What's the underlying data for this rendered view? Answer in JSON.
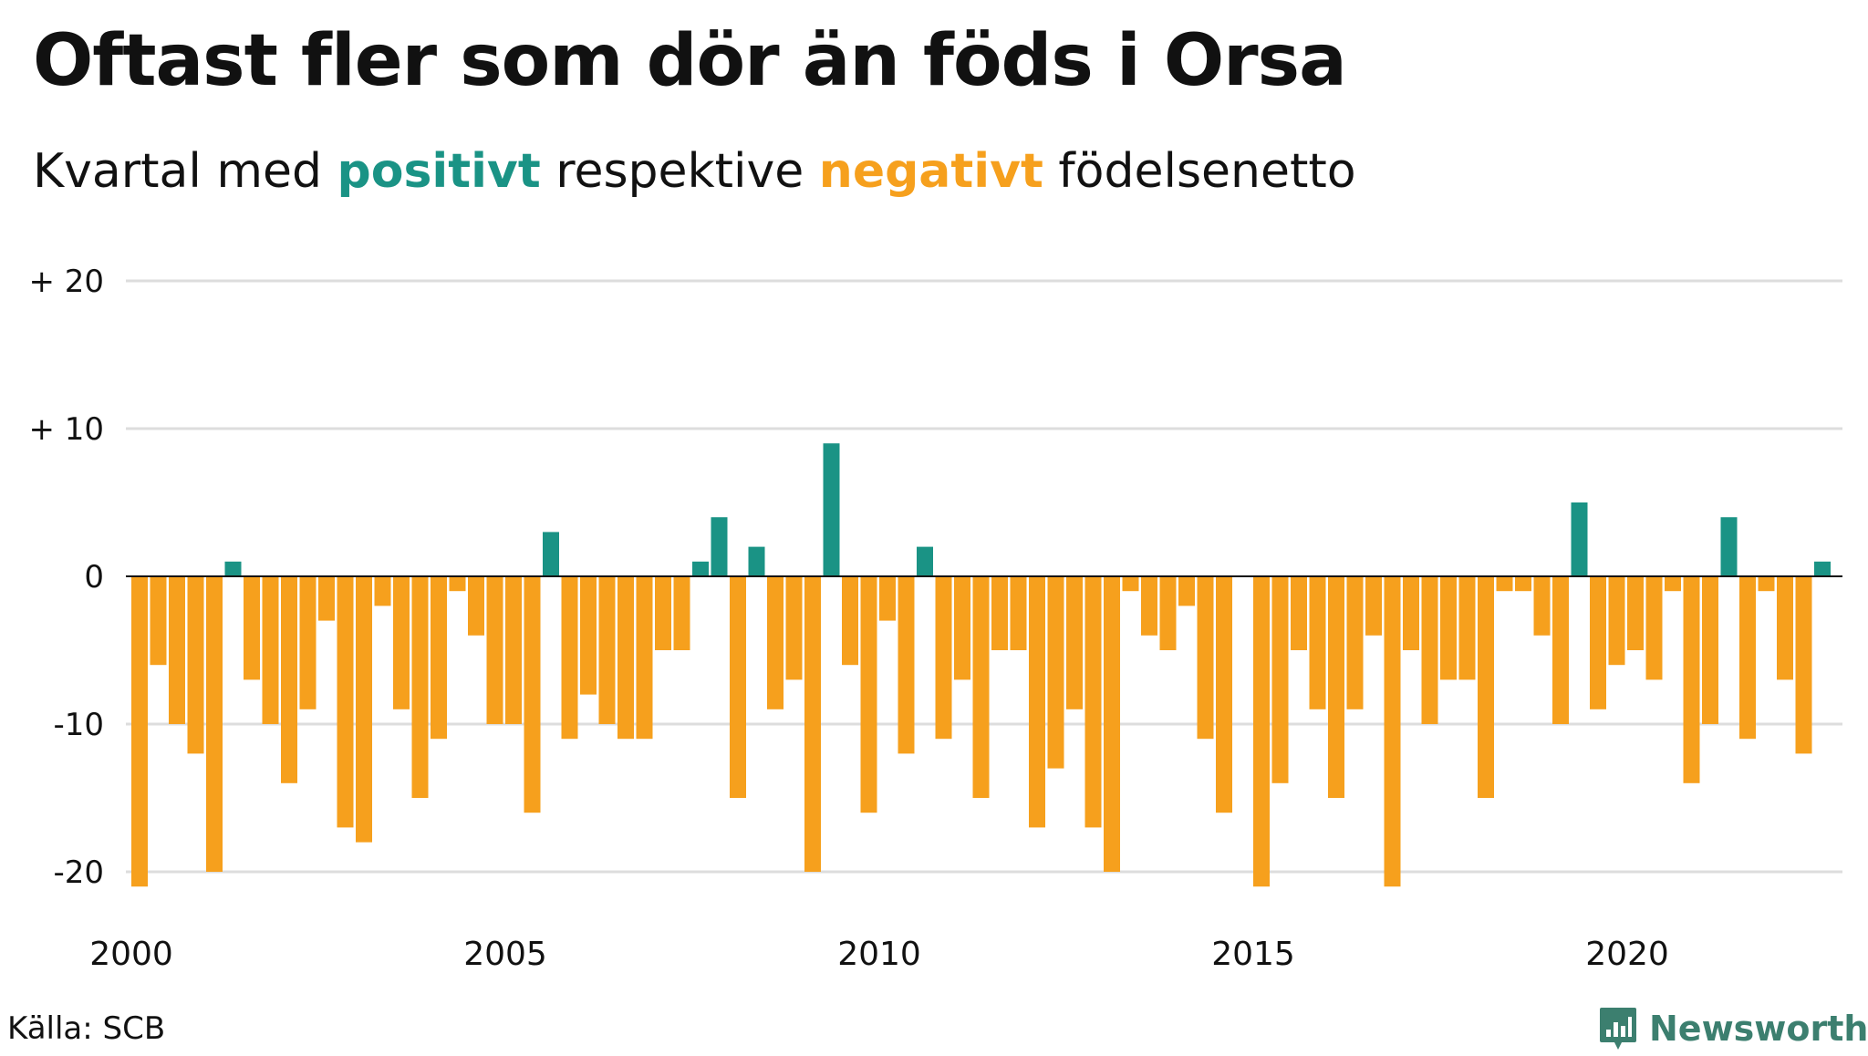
{
  "header": {
    "title": "Oftast fler som dör än föds i Orsa",
    "subtitle_prefix": "Kvartal med ",
    "subtitle_positive": "positivt",
    "subtitle_middle": " respektive ",
    "subtitle_negative": "negativt",
    "subtitle_suffix": " födelsenetto"
  },
  "footer": {
    "source": "Källa: SCB",
    "brand": "Newsworthy",
    "brand_icon": "bar-chart-chat-icon"
  },
  "colors": {
    "positive": "#1a9385",
    "negative": "#f6a01d",
    "grid": "#dddddd",
    "zero_line": "#111111",
    "brand": "#3c7f6f"
  },
  "chart_data": {
    "type": "bar",
    "x_start_year": 2000,
    "periods_per_year": 4,
    "values": [
      -21,
      -6,
      -10,
      -12,
      -20,
      1,
      -7,
      -10,
      -14,
      -9,
      -3,
      -17,
      -18,
      -2,
      -9,
      -15,
      -11,
      -1,
      -4,
      -10,
      -10,
      -16,
      3,
      -11,
      -8,
      -10,
      -11,
      -11,
      -5,
      -5,
      1,
      4,
      -15,
      2,
      -9,
      -7,
      -20,
      9,
      -6,
      -16,
      -3,
      -12,
      2,
      -11,
      -7,
      -15,
      -5,
      -5,
      -17,
      -13,
      -9,
      -17,
      -20,
      -1,
      -4,
      -5,
      -2,
      -11,
      -16,
      0,
      -21,
      -14,
      -5,
      -9,
      -15,
      -9,
      -4,
      -21,
      -5,
      -10,
      -7,
      -7,
      -15,
      -1,
      -1,
      -4,
      -10,
      5,
      -9,
      -6,
      -5,
      -7,
      -1,
      -14,
      -10,
      4,
      -11,
      -1,
      -7,
      -12,
      1
    ],
    "y_ticks": [
      20,
      10,
      0,
      -10,
      -20
    ],
    "y_tick_labels": [
      "+ 20",
      "+ 10",
      "0",
      "-10",
      "-20"
    ],
    "x_ticks": [
      2000,
      2005,
      2010,
      2015,
      2020
    ],
    "x_tick_labels": [
      "2000",
      "2005",
      "2010",
      "2015",
      "2020"
    ],
    "ylim": [
      -22,
      20
    ],
    "grid": true,
    "legend": "none"
  }
}
